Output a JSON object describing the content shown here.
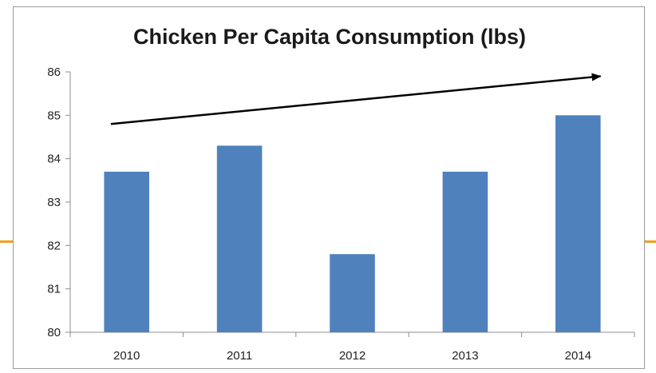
{
  "chart_data": {
    "type": "bar",
    "title": "Chicken Per Capita Consumption (lbs)",
    "xlabel": "",
    "ylabel": "",
    "categories": [
      "2010",
      "2011",
      "2012",
      "2013",
      "2014"
    ],
    "values": [
      83.7,
      84.3,
      81.8,
      83.7,
      85.0
    ],
    "ylim": [
      80,
      86
    ],
    "yticks": [
      80,
      81,
      82,
      83,
      84,
      85,
      86
    ],
    "grid": false,
    "legend": "none",
    "bar_color": "#4f81bd",
    "annotations": [
      {
        "type": "trend-arrow",
        "from": {
          "x": "2010",
          "y": 84.8
        },
        "to": {
          "x": "2014",
          "y": 85.9
        }
      }
    ]
  },
  "colors": {
    "accent_rule": "#f0a020",
    "frame_border": "#9a9a9a",
    "axis": "#8c8c8c"
  }
}
